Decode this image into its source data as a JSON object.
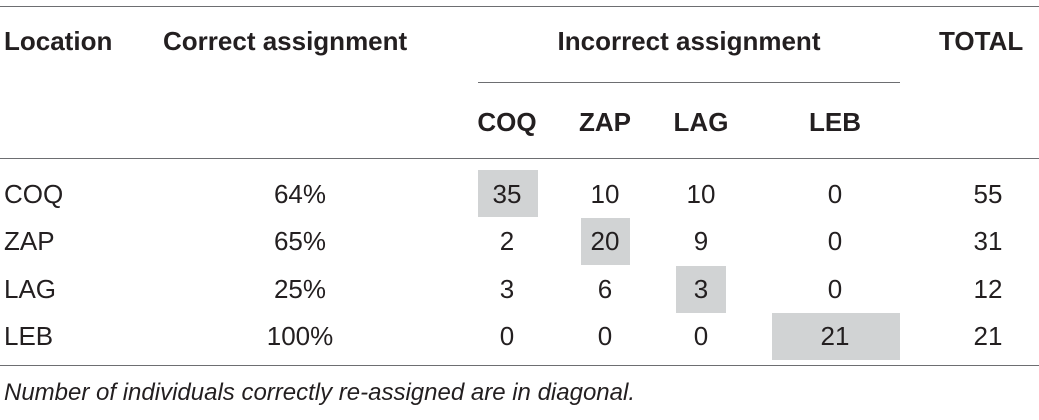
{
  "table": {
    "headers": {
      "location": "Location",
      "correct": "Correct assignment",
      "incorrect": "Incorrect assignment",
      "total": "TOTAL"
    },
    "sub_headers": [
      "COQ",
      "ZAP",
      "LAG",
      "LEB"
    ],
    "rows": [
      {
        "location": "COQ",
        "correct": "64%",
        "values": [
          "35",
          "10",
          "10",
          "0"
        ],
        "total": "55"
      },
      {
        "location": "ZAP",
        "correct": "65%",
        "values": [
          "2",
          "20",
          "9",
          "0"
        ],
        "total": "31"
      },
      {
        "location": "LAG",
        "correct": "25%",
        "values": [
          "3",
          "6",
          "3",
          "0"
        ],
        "total": "12"
      },
      {
        "location": "LEB",
        "correct": "100%",
        "values": [
          "0",
          "0",
          "0",
          "21"
        ],
        "total": "21"
      }
    ],
    "highlight_color": "#d1d3d4"
  },
  "footnote": "Number of individuals correctly re-assigned are in diagonal."
}
